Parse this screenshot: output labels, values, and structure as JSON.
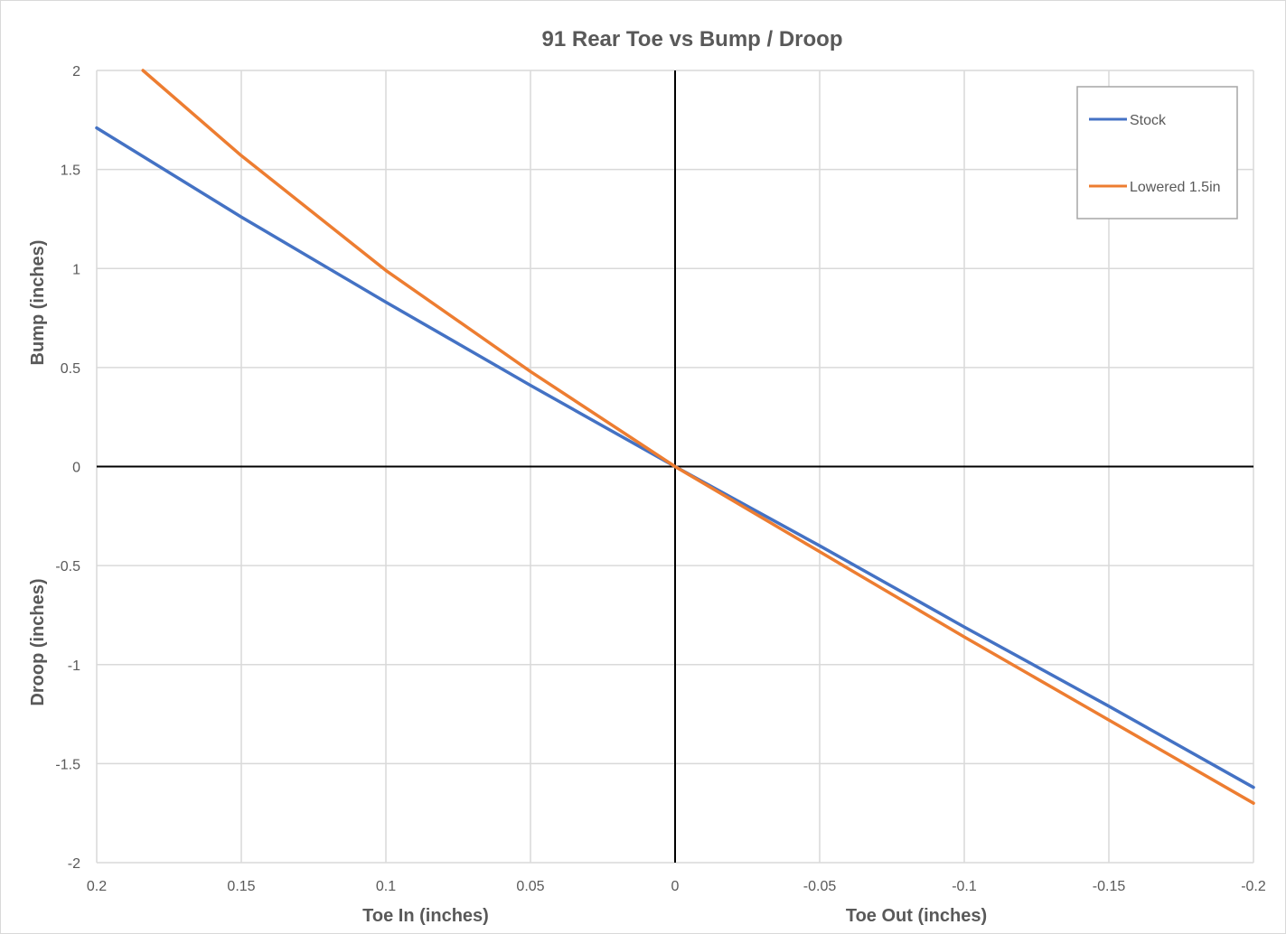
{
  "chart_data": {
    "type": "line",
    "title": "91 Rear Toe vs Bump / Droop",
    "x_axis": {
      "reversed": true,
      "min": -0.2,
      "max": 0.2,
      "ticks": [
        0.2,
        0.15,
        0.1,
        0.05,
        0,
        -0.05,
        -0.1,
        -0.15,
        -0.2
      ],
      "tick_labels": [
        "0.2",
        "0.15",
        "0.1",
        "0.05",
        "0",
        "-0.05",
        "-0.1",
        "-0.15",
        "-0.2"
      ],
      "label_left": "Toe In (inches)",
      "label_right": "Toe Out (inches)"
    },
    "y_axis": {
      "min": -2,
      "max": 2,
      "ticks": [
        2,
        1.5,
        1,
        0.5,
        0,
        -0.5,
        -1,
        -1.5,
        -2
      ],
      "tick_labels": [
        "2",
        "1.5",
        "1",
        "0.5",
        "0",
        "-0.5",
        "-1",
        "-1.5",
        "-2"
      ],
      "label_top": "Bump (inches)",
      "label_bottom": "Droop (inches)"
    },
    "grid": true,
    "legend_position": "top-right",
    "series": [
      {
        "name": "Stock",
        "color": "#4472C4",
        "points": [
          [
            0.2,
            1.71
          ],
          [
            0.15,
            1.26
          ],
          [
            0.1,
            0.83
          ],
          [
            0.05,
            0.41
          ],
          [
            0,
            0
          ],
          [
            -0.05,
            -0.4
          ],
          [
            -0.1,
            -0.81
          ],
          [
            -0.15,
            -1.21
          ],
          [
            -0.2,
            -1.62
          ]
        ]
      },
      {
        "name": "Lowered 1.5in",
        "color": "#ED7D31",
        "points": [
          [
            0.184,
            2.0
          ],
          [
            0.15,
            1.57
          ],
          [
            0.1,
            0.99
          ],
          [
            0.05,
            0.48
          ],
          [
            0,
            0
          ],
          [
            -0.05,
            -0.43
          ],
          [
            -0.1,
            -0.86
          ],
          [
            -0.15,
            -1.28
          ],
          [
            -0.2,
            -1.7
          ]
        ]
      }
    ]
  }
}
